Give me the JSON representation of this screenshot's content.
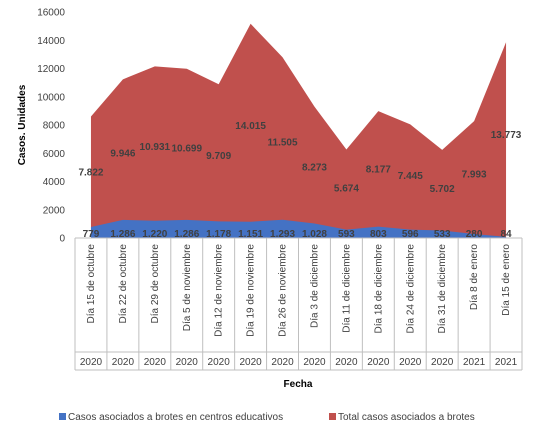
{
  "chart_data": {
    "type": "area",
    "xlabel": "Fecha",
    "ylabel": "Casos. Unidades",
    "ylim": [
      0,
      16000
    ],
    "yticks": [
      "0",
      "2000",
      "4000",
      "6000",
      "8000",
      "10000",
      "12000",
      "14000",
      "16000"
    ],
    "categories": [
      "Día 15 de octubre",
      "Día 22 de octubre",
      "Día 29 de octubre",
      "Día 5 de noviembre",
      "Día 12 de noviembre",
      "Día 19 de noviembre",
      "Día 26 de noviembre",
      "Día 3 de diciembre",
      "Día 11 de diciembre",
      "Día 18 de diciembre",
      "Día 24 de diciembre",
      "Día 31 de diciembre",
      "Día 8 de enero",
      "Día 15 de enero"
    ],
    "years": [
      "2020",
      "2020",
      "2020",
      "2020",
      "2020",
      "2020",
      "2020",
      "2020",
      "2020",
      "2020",
      "2020",
      "2020",
      "2021",
      "2021"
    ],
    "series": [
      {
        "name": "Casos asociados a brotes en centros educativos",
        "color": "#4472c4",
        "values": [
          779,
          1286,
          1220,
          1286,
          1178,
          1151,
          1293,
          1028,
          593,
          803,
          596,
          533,
          280,
          84
        ],
        "labels": [
          "779",
          "1.286",
          "1.220",
          "1.286",
          "1.178",
          "1.151",
          "1.293",
          "1.028",
          "593",
          "803",
          "596",
          "533",
          "280",
          "84"
        ]
      },
      {
        "name": "Total casos asociados a brotes",
        "color": "#c0504d",
        "values": [
          8601,
          11232,
          12151,
          11985,
          10887,
          15166,
          12798,
          9301,
          6267,
          8980,
          8041,
          6235,
          8273,
          13857
        ],
        "labels": [
          "7.822",
          "9.946",
          "10.931",
          "10.699",
          "9.709",
          "14.015",
          "11.505",
          "8.273",
          "5.674",
          "8.177",
          "7.445",
          "5.702",
          "7.993",
          "13.773"
        ]
      }
    ],
    "grid": false,
    "legend": "bottom"
  }
}
